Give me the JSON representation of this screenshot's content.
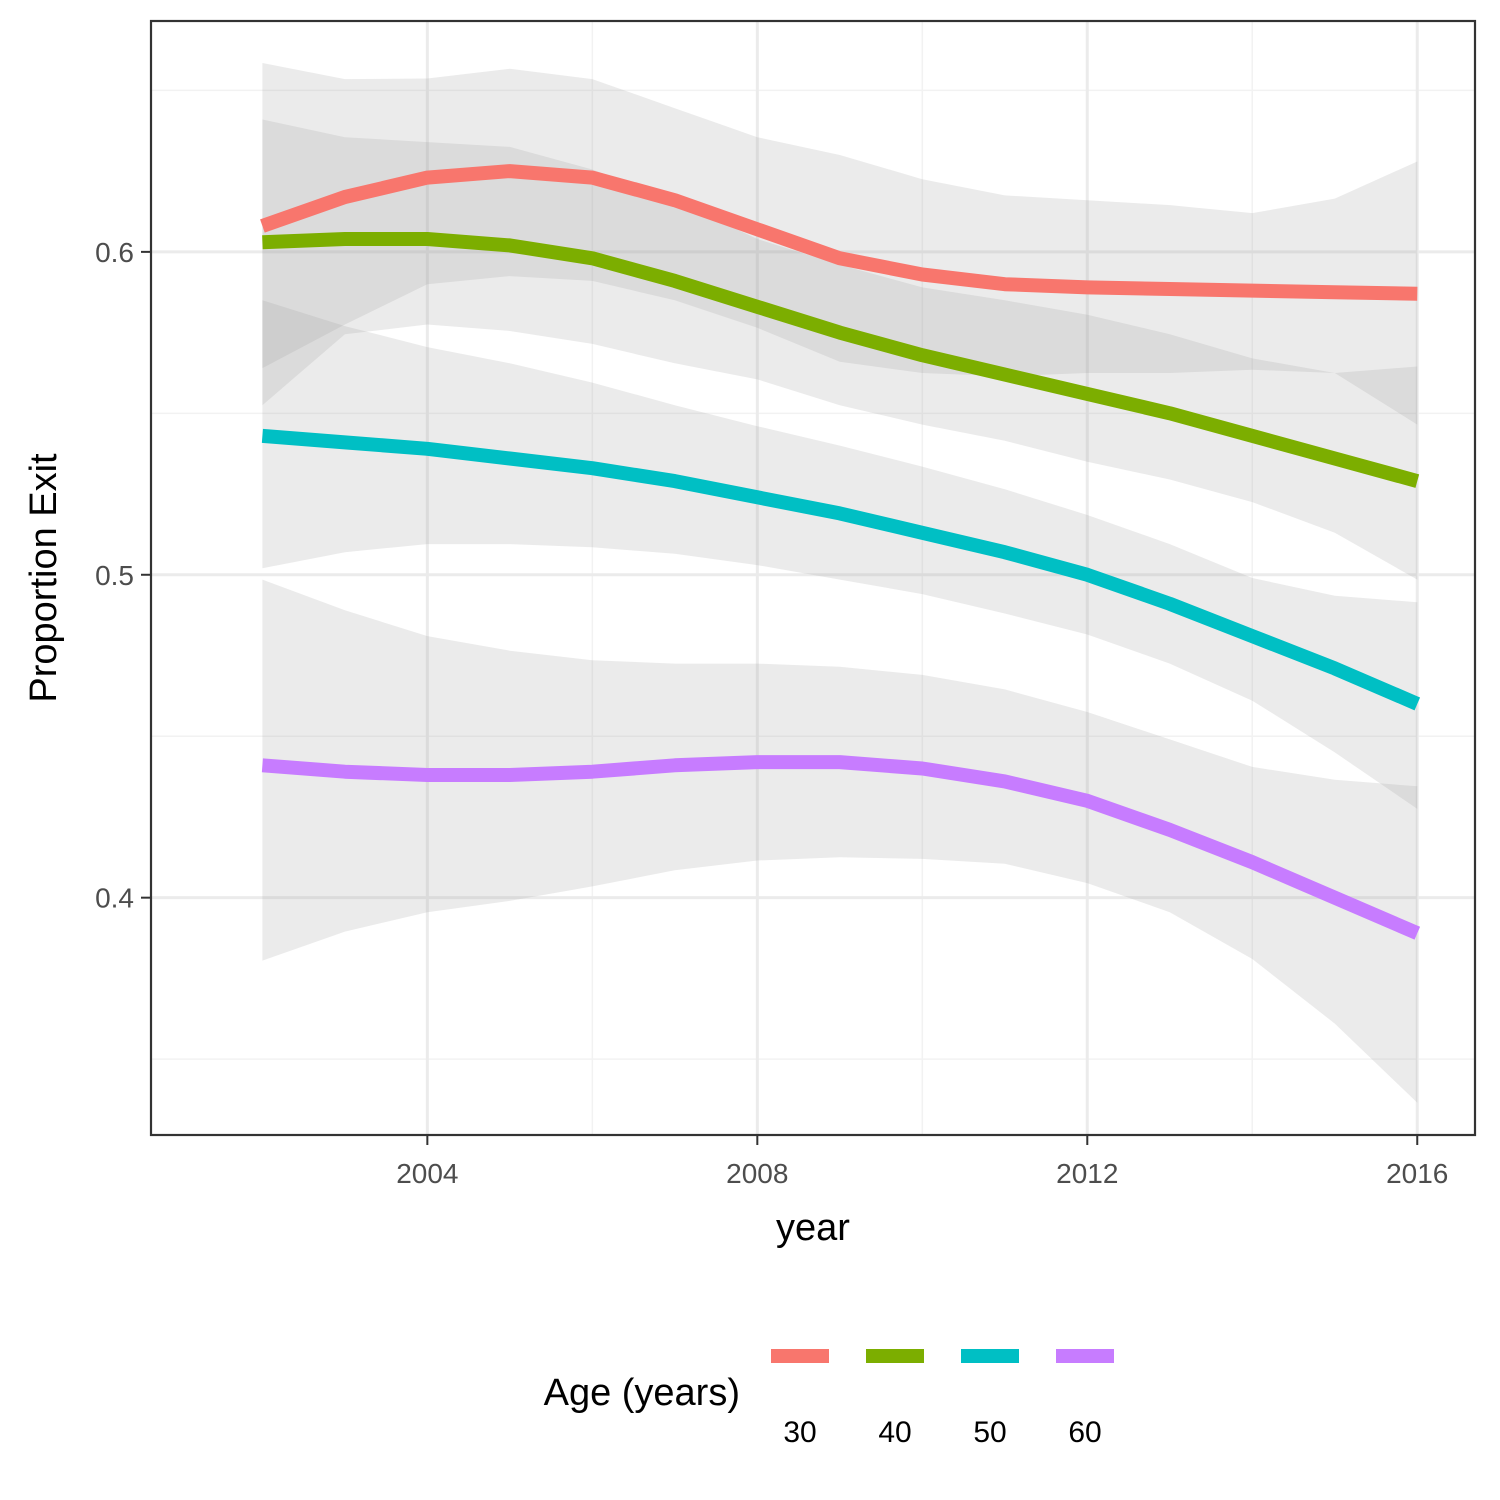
{
  "chart_data": {
    "type": "line",
    "title": "",
    "xlabel": "year",
    "ylabel": "Proportion Exit",
    "xlim": [
      2000.65,
      2016.7
    ],
    "ylim": [
      0.3265,
      0.6715
    ],
    "x_ticks": [
      2004,
      2008,
      2012,
      2016
    ],
    "x_tick_labels": [
      "2004",
      "2008",
      "2012",
      "2016"
    ],
    "y_ticks": [
      0.4,
      0.5,
      0.6
    ],
    "y_tick_labels": [
      "0.4",
      "0.5",
      "0.6"
    ],
    "grid": true,
    "legend": {
      "title": "Age (years)",
      "position": "bottom"
    },
    "x": [
      2002,
      2003,
      2004,
      2005,
      2006,
      2007,
      2008,
      2009,
      2010,
      2011,
      2012,
      2013,
      2014,
      2015,
      2016
    ],
    "series": [
      {
        "name": "30",
        "color": "#F8766D",
        "values": [
          0.608,
          0.617,
          0.623,
          0.625,
          0.623,
          0.616,
          0.607,
          0.598,
          0.593,
          0.59,
          0.589,
          0.5885,
          0.588,
          0.5875,
          0.587
        ],
        "upper": [
          0.6585,
          0.6535,
          0.6537,
          0.6567,
          0.6535,
          0.6445,
          0.6355,
          0.63,
          0.6225,
          0.6175,
          0.616,
          0.6145,
          0.612,
          0.6165,
          0.628
        ],
        "lower": [
          0.564,
          0.5775,
          0.59,
          0.5925,
          0.591,
          0.585,
          0.5765,
          0.566,
          0.5625,
          0.5615,
          0.5625,
          0.5625,
          0.5635,
          0.5625,
          0.5465
        ]
      },
      {
        "name": "40",
        "color": "#7CAE00",
        "values": [
          0.603,
          0.604,
          0.604,
          0.602,
          0.598,
          0.591,
          0.583,
          0.575,
          0.568,
          0.562,
          0.556,
          0.55,
          0.543,
          0.536,
          0.529
        ],
        "upper": [
          0.641,
          0.6355,
          0.634,
          0.6325,
          0.6255,
          0.616,
          0.604,
          0.596,
          0.589,
          0.585,
          0.5805,
          0.5745,
          0.567,
          0.5625,
          0.5645
        ],
        "lower": [
          0.5525,
          0.5745,
          0.5775,
          0.5755,
          0.5715,
          0.5655,
          0.5605,
          0.5525,
          0.5465,
          0.5415,
          0.535,
          0.5295,
          0.5225,
          0.513,
          0.4985
        ]
      },
      {
        "name": "50",
        "color": "#00BFC4",
        "values": [
          0.543,
          0.541,
          0.539,
          0.536,
          0.533,
          0.529,
          0.524,
          0.519,
          0.513,
          0.507,
          0.5,
          0.491,
          0.481,
          0.471,
          0.46
        ],
        "upper": [
          0.585,
          0.577,
          0.5705,
          0.5655,
          0.5595,
          0.5525,
          0.546,
          0.54,
          0.5335,
          0.5265,
          0.5185,
          0.5095,
          0.499,
          0.4935,
          0.4915
        ],
        "lower": [
          0.502,
          0.507,
          0.5095,
          0.5095,
          0.5085,
          0.5065,
          0.503,
          0.4985,
          0.494,
          0.488,
          0.4815,
          0.4725,
          0.461,
          0.445,
          0.4275
        ]
      },
      {
        "name": "60",
        "color": "#C77CFF",
        "values": [
          0.441,
          0.439,
          0.438,
          0.438,
          0.439,
          0.441,
          0.442,
          0.442,
          0.44,
          0.436,
          0.43,
          0.421,
          0.411,
          0.4,
          0.389
        ],
        "upper": [
          0.4985,
          0.489,
          0.481,
          0.4765,
          0.4735,
          0.4725,
          0.4725,
          0.4715,
          0.469,
          0.4645,
          0.4575,
          0.449,
          0.4405,
          0.4365,
          0.4345
        ],
        "lower": [
          0.3805,
          0.3895,
          0.3955,
          0.399,
          0.4035,
          0.4085,
          0.4115,
          0.4125,
          0.412,
          0.4105,
          0.4045,
          0.3955,
          0.381,
          0.361,
          0.3365
        ]
      }
    ]
  }
}
